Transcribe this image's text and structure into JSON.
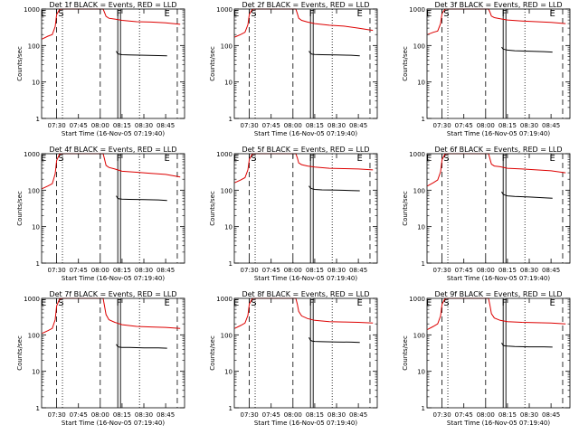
{
  "figure": {
    "ylabel": "Counts/sec",
    "xlabel": "Start Time (16-Nov-05 07:19:40)",
    "colors": {
      "events": "#000000",
      "lld": "#dd0000",
      "axes": "#000000"
    }
  },
  "chart_data": [
    {
      "type": "line",
      "title": "Det 1f BLACK = Events, RED = LLD",
      "xlabel": "Start Time (16-Nov-05 07:19:40)",
      "ylabel": "Counts/sec",
      "xlim": [
        "07:19:40",
        "08:58:00"
      ],
      "ylim": [
        1,
        1000
      ],
      "yscale": "log",
      "x_ticks": [
        "07:30",
        "07:45",
        "08:00",
        "08:15",
        "08:30",
        "08:45"
      ],
      "y_ticks": [
        "1",
        "10",
        "100",
        "1000"
      ],
      "series": [
        {
          "name": "RED = LLD",
          "color": "#dd0000",
          "x": [
            "07:20",
            "07:24",
            "07:27",
            "07:29",
            "07:30",
            "07:32",
            "07:34",
            "07:35",
            "08:02",
            "08:03",
            "08:04",
            "08:06",
            "08:10",
            "08:15",
            "08:25",
            "08:35",
            "08:45",
            "08:55"
          ],
          "y": [
            150,
            180,
            200,
            330,
            700,
            980,
            1000,
            1000,
            1000,
            800,
            630,
            560,
            530,
            490,
            450,
            440,
            420,
            380
          ]
        },
        {
          "name": "BLACK = Events",
          "color": "#000000",
          "x": [
            "08:11",
            "08:12",
            "08:13",
            "08:15",
            "08:20",
            "08:30",
            "08:40",
            "08:46"
          ],
          "y": [
            70,
            60,
            58,
            56,
            55,
            54,
            53,
            52
          ]
        }
      ],
      "markers": [
        {
          "label": "E",
          "x": "07:21"
        },
        {
          "label": "S",
          "x": "07:33"
        },
        {
          "label": "F",
          "x": "08:13"
        },
        {
          "label": "E",
          "x": "08:46"
        }
      ]
    },
    {
      "type": "line",
      "title": "Det 2f BLACK = Events, RED = LLD",
      "xlabel": "Start Time (16-Nov-05 07:19:40)",
      "ylabel": "Counts/sec",
      "xlim": [
        "07:19:40",
        "08:58:00"
      ],
      "ylim": [
        1,
        1000
      ],
      "yscale": "log",
      "x_ticks": [
        "07:30",
        "07:45",
        "08:00",
        "08:15",
        "08:30",
        "08:45"
      ],
      "y_ticks": [
        "1",
        "10",
        "100",
        "1000"
      ],
      "series": [
        {
          "name": "RED = LLD",
          "color": "#dd0000",
          "x": [
            "07:20",
            "07:24",
            "07:27",
            "07:29",
            "07:30",
            "07:32",
            "07:34",
            "07:35",
            "08:02",
            "08:03",
            "08:04",
            "08:06",
            "08:10",
            "08:15",
            "08:25",
            "08:35",
            "08:45",
            "08:55"
          ],
          "y": [
            170,
            200,
            230,
            370,
            720,
            980,
            1000,
            1000,
            1000,
            760,
            560,
            490,
            440,
            400,
            360,
            340,
            300,
            260
          ]
        },
        {
          "name": "BLACK = Events",
          "color": "#000000",
          "x": [
            "08:11",
            "08:12",
            "08:13",
            "08:15",
            "08:20",
            "08:30",
            "08:40",
            "08:46"
          ],
          "y": [
            70,
            62,
            58,
            57,
            56,
            55,
            54,
            52
          ]
        }
      ],
      "markers": [
        {
          "label": "E",
          "x": "07:21"
        },
        {
          "label": "S",
          "x": "07:33"
        },
        {
          "label": "F",
          "x": "08:13"
        },
        {
          "label": "E",
          "x": "08:46"
        }
      ]
    },
    {
      "type": "line",
      "title": "Det 3f BLACK = Events, RED = LLD",
      "xlabel": "Start Time (16-Nov-05 07:19:40)",
      "ylabel": "Counts/sec",
      "xlim": [
        "07:19:40",
        "08:58:00"
      ],
      "ylim": [
        1,
        1000
      ],
      "yscale": "log",
      "x_ticks": [
        "07:30",
        "07:45",
        "08:00",
        "08:15",
        "08:30",
        "08:45"
      ],
      "y_ticks": [
        "1",
        "10",
        "100",
        "1000"
      ],
      "series": [
        {
          "name": "RED = LLD",
          "color": "#dd0000",
          "x": [
            "07:20",
            "07:24",
            "07:27",
            "07:29",
            "07:30",
            "07:32",
            "07:34",
            "07:35",
            "08:02",
            "08:03",
            "08:04",
            "08:06",
            "08:10",
            "08:15",
            "08:25",
            "08:35",
            "08:45",
            "08:55"
          ],
          "y": [
            200,
            230,
            250,
            400,
            760,
            990,
            1000,
            1000,
            1000,
            820,
            640,
            580,
            540,
            500,
            470,
            450,
            430,
            400
          ]
        },
        {
          "name": "BLACK = Events",
          "color": "#000000",
          "x": [
            "08:11",
            "08:12",
            "08:13",
            "08:15",
            "08:20",
            "08:30",
            "08:40",
            "08:46"
          ],
          "y": [
            90,
            80,
            78,
            75,
            72,
            70,
            68,
            66
          ]
        }
      ],
      "markers": [
        {
          "label": "E",
          "x": "07:21"
        },
        {
          "label": "S",
          "x": "07:33"
        },
        {
          "label": "F",
          "x": "08:13"
        },
        {
          "label": "E",
          "x": "08:46"
        }
      ]
    },
    {
      "type": "line",
      "title": "Det 4f BLACK = Events, RED = LLD",
      "xlabel": "Start Time (16-Nov-05 07:19:40)",
      "ylabel": "Counts/sec",
      "xlim": [
        "07:19:40",
        "08:58:00"
      ],
      "ylim": [
        1,
        1000
      ],
      "yscale": "log",
      "x_ticks": [
        "07:30",
        "07:45",
        "08:00",
        "08:15",
        "08:30",
        "08:45"
      ],
      "y_ticks": [
        "1",
        "10",
        "100",
        "1000"
      ],
      "series": [
        {
          "name": "RED = LLD",
          "color": "#dd0000",
          "x": [
            "07:20",
            "07:24",
            "07:27",
            "07:29",
            "07:30",
            "07:32",
            "07:34",
            "07:35",
            "08:02",
            "08:03",
            "08:04",
            "08:06",
            "08:10",
            "08:15",
            "08:25",
            "08:35",
            "08:45",
            "08:55"
          ],
          "y": [
            110,
            130,
            150,
            280,
            650,
            970,
            1000,
            1000,
            1000,
            700,
            480,
            420,
            380,
            330,
            310,
            290,
            270,
            230
          ]
        },
        {
          "name": "BLACK = Events",
          "color": "#000000",
          "x": [
            "08:11",
            "08:12",
            "08:13",
            "08:15",
            "08:20",
            "08:30",
            "08:40",
            "08:46"
          ],
          "y": [
            70,
            60,
            58,
            57,
            56,
            55,
            54,
            52
          ]
        }
      ],
      "markers": [
        {
          "label": "E",
          "x": "07:21"
        },
        {
          "label": "S",
          "x": "07:33"
        },
        {
          "label": "F",
          "x": "08:13"
        },
        {
          "label": "E",
          "x": "08:46"
        }
      ]
    },
    {
      "type": "line",
      "title": "Det 5f BLACK = Events, RED = LLD",
      "xlabel": "Start Time (16-Nov-05 07:19:40)",
      "ylabel": "Counts/sec",
      "xlim": [
        "07:19:40",
        "08:58:00"
      ],
      "ylim": [
        1,
        1000
      ],
      "yscale": "log",
      "x_ticks": [
        "07:30",
        "07:45",
        "08:00",
        "08:15",
        "08:30",
        "08:45"
      ],
      "y_ticks": [
        "1",
        "10",
        "100",
        "1000"
      ],
      "series": [
        {
          "name": "RED = LLD",
          "color": "#dd0000",
          "x": [
            "07:20",
            "07:24",
            "07:27",
            "07:29",
            "07:30",
            "07:32",
            "07:34",
            "07:35",
            "08:02",
            "08:03",
            "08:04",
            "08:06",
            "08:10",
            "08:15",
            "08:25",
            "08:35",
            "08:45",
            "08:55"
          ],
          "y": [
            160,
            190,
            220,
            360,
            700,
            980,
            1000,
            1000,
            1000,
            780,
            560,
            500,
            460,
            430,
            400,
            390,
            380,
            360
          ]
        },
        {
          "name": "BLACK = Events",
          "color": "#000000",
          "x": [
            "08:11",
            "08:12",
            "08:13",
            "08:15",
            "08:20",
            "08:30",
            "08:40",
            "08:46"
          ],
          "y": [
            130,
            115,
            110,
            105,
            102,
            100,
            98,
            96
          ]
        }
      ],
      "markers": [
        {
          "label": "E",
          "x": "07:21"
        },
        {
          "label": "S",
          "x": "07:33"
        },
        {
          "label": "F",
          "x": "08:13"
        },
        {
          "label": "E",
          "x": "08:46"
        }
      ]
    },
    {
      "type": "line",
      "title": "Det 6f BLACK = Events, RED = LLD",
      "xlabel": "Start Time (16-Nov-05 07:19:40)",
      "ylabel": "Counts/sec",
      "xlim": [
        "07:19:40",
        "08:58:00"
      ],
      "ylim": [
        1,
        1000
      ],
      "yscale": "log",
      "x_ticks": [
        "07:30",
        "07:45",
        "08:00",
        "08:15",
        "08:30",
        "08:45"
      ],
      "y_ticks": [
        "1",
        "10",
        "100",
        "1000"
      ],
      "series": [
        {
          "name": "RED = LLD",
          "color": "#dd0000",
          "x": [
            "07:20",
            "07:24",
            "07:27",
            "07:29",
            "07:30",
            "07:32",
            "07:34",
            "07:35",
            "08:02",
            "08:03",
            "08:04",
            "08:06",
            "08:10",
            "08:15",
            "08:25",
            "08:35",
            "08:45",
            "08:55"
          ],
          "y": [
            130,
            160,
            190,
            320,
            680,
            970,
            1000,
            1000,
            1000,
            720,
            520,
            460,
            440,
            400,
            380,
            360,
            340,
            300
          ]
        },
        {
          "name": "BLACK = Events",
          "color": "#000000",
          "x": [
            "08:11",
            "08:12",
            "08:13",
            "08:15",
            "08:20",
            "08:30",
            "08:40",
            "08:46"
          ],
          "y": [
            90,
            78,
            74,
            70,
            67,
            65,
            62,
            60
          ]
        }
      ],
      "markers": [
        {
          "label": "E",
          "x": "07:21"
        },
        {
          "label": "S",
          "x": "07:33"
        },
        {
          "label": "F",
          "x": "08:13"
        },
        {
          "label": "E",
          "x": "08:46"
        }
      ]
    },
    {
      "type": "line",
      "title": "Det 7f BLACK = Events, RED = LLD",
      "xlabel": "Start Time (16-Nov-05 07:19:40)",
      "ylabel": "Counts/sec",
      "xlim": [
        "07:19:40",
        "08:58:00"
      ],
      "ylim": [
        1,
        1000
      ],
      "yscale": "log",
      "x_ticks": [
        "07:30",
        "07:45",
        "08:00",
        "08:15",
        "08:30",
        "08:45"
      ],
      "y_ticks": [
        "1",
        "10",
        "100",
        "1000"
      ],
      "series": [
        {
          "name": "RED = LLD",
          "color": "#dd0000",
          "x": [
            "07:20",
            "07:24",
            "07:27",
            "07:29",
            "07:30",
            "07:32",
            "07:34",
            "07:35",
            "08:02",
            "08:03",
            "08:04",
            "08:06",
            "08:10",
            "08:15",
            "08:25",
            "08:35",
            "08:45",
            "08:55"
          ],
          "y": [
            110,
            130,
            150,
            260,
            620,
            960,
            1000,
            1000,
            1000,
            600,
            360,
            260,
            220,
            190,
            170,
            165,
            160,
            150
          ]
        },
        {
          "name": "BLACK = Events",
          "color": "#000000",
          "x": [
            "08:11",
            "08:12",
            "08:13",
            "08:15",
            "08:20",
            "08:30",
            "08:40",
            "08:46"
          ],
          "y": [
            55,
            48,
            46,
            45,
            45,
            44,
            44,
            43
          ]
        }
      ],
      "markers": [
        {
          "label": "E",
          "x": "07:21"
        },
        {
          "label": "S",
          "x": "07:33"
        },
        {
          "label": "F",
          "x": "08:13"
        },
        {
          "label": "E",
          "x": "08:46"
        }
      ]
    },
    {
      "type": "line",
      "title": "Det 8f BLACK = Events, RED = LLD",
      "xlabel": "Start Time (16-Nov-05 07:19:40)",
      "ylabel": "Counts/sec",
      "xlim": [
        "07:19:40",
        "08:58:00"
      ],
      "ylim": [
        1,
        1000
      ],
      "yscale": "log",
      "x_ticks": [
        "07:30",
        "07:45",
        "08:00",
        "08:15",
        "08:30",
        "08:45"
      ],
      "y_ticks": [
        "1",
        "10",
        "100",
        "1000"
      ],
      "series": [
        {
          "name": "RED = LLD",
          "color": "#dd0000",
          "x": [
            "07:20",
            "07:24",
            "07:27",
            "07:29",
            "07:30",
            "07:32",
            "07:34",
            "07:35",
            "08:02",
            "08:03",
            "08:04",
            "08:06",
            "08:10",
            "08:15",
            "08:25",
            "08:35",
            "08:45",
            "08:55"
          ],
          "y": [
            150,
            180,
            210,
            340,
            700,
            980,
            1000,
            1000,
            1000,
            700,
            440,
            330,
            280,
            250,
            230,
            225,
            220,
            210
          ]
        },
        {
          "name": "BLACK = Events",
          "color": "#000000",
          "x": [
            "08:11",
            "08:12",
            "08:13",
            "08:15",
            "08:20",
            "08:30",
            "08:40",
            "08:46"
          ],
          "y": [
            85,
            72,
            68,
            66,
            65,
            64,
            63,
            62
          ]
        }
      ],
      "markers": [
        {
          "label": "E",
          "x": "07:21"
        },
        {
          "label": "S",
          "x": "07:33"
        },
        {
          "label": "F",
          "x": "08:13"
        },
        {
          "label": "E",
          "x": "08:46"
        }
      ]
    },
    {
      "type": "line",
      "title": "Det 9f BLACK = Events, RED = LLD",
      "xlabel": "Start Time (16-Nov-05 07:19:40)",
      "ylabel": "Counts/sec",
      "xlim": [
        "07:19:40",
        "08:58:00"
      ],
      "ylim": [
        1,
        1000
      ],
      "yscale": "log",
      "x_ticks": [
        "07:30",
        "07:45",
        "08:00",
        "08:15",
        "08:30",
        "08:45"
      ],
      "y_ticks": [
        "1",
        "10",
        "100",
        "1000"
      ],
      "series": [
        {
          "name": "RED = LLD",
          "color": "#dd0000",
          "x": [
            "07:20",
            "07:24",
            "07:27",
            "07:29",
            "07:30",
            "07:32",
            "07:34",
            "07:35",
            "08:02",
            "08:03",
            "08:04",
            "08:06",
            "08:10",
            "08:15",
            "08:25",
            "08:35",
            "08:45",
            "08:55"
          ],
          "y": [
            140,
            170,
            200,
            330,
            690,
            970,
            1000,
            1000,
            1000,
            640,
            380,
            290,
            250,
            230,
            220,
            215,
            210,
            200
          ]
        },
        {
          "name": "BLACK = Events",
          "color": "#000000",
          "x": [
            "08:11",
            "08:12",
            "08:13",
            "08:15",
            "08:20",
            "08:30",
            "08:40",
            "08:46"
          ],
          "y": [
            60,
            52,
            50,
            49,
            48,
            47,
            47,
            46
          ]
        }
      ],
      "markers": [
        {
          "label": "E",
          "x": "07:21"
        },
        {
          "label": "S",
          "x": "07:33"
        },
        {
          "label": "F",
          "x": "08:13"
        },
        {
          "label": "E",
          "x": "08:46"
        }
      ]
    }
  ]
}
